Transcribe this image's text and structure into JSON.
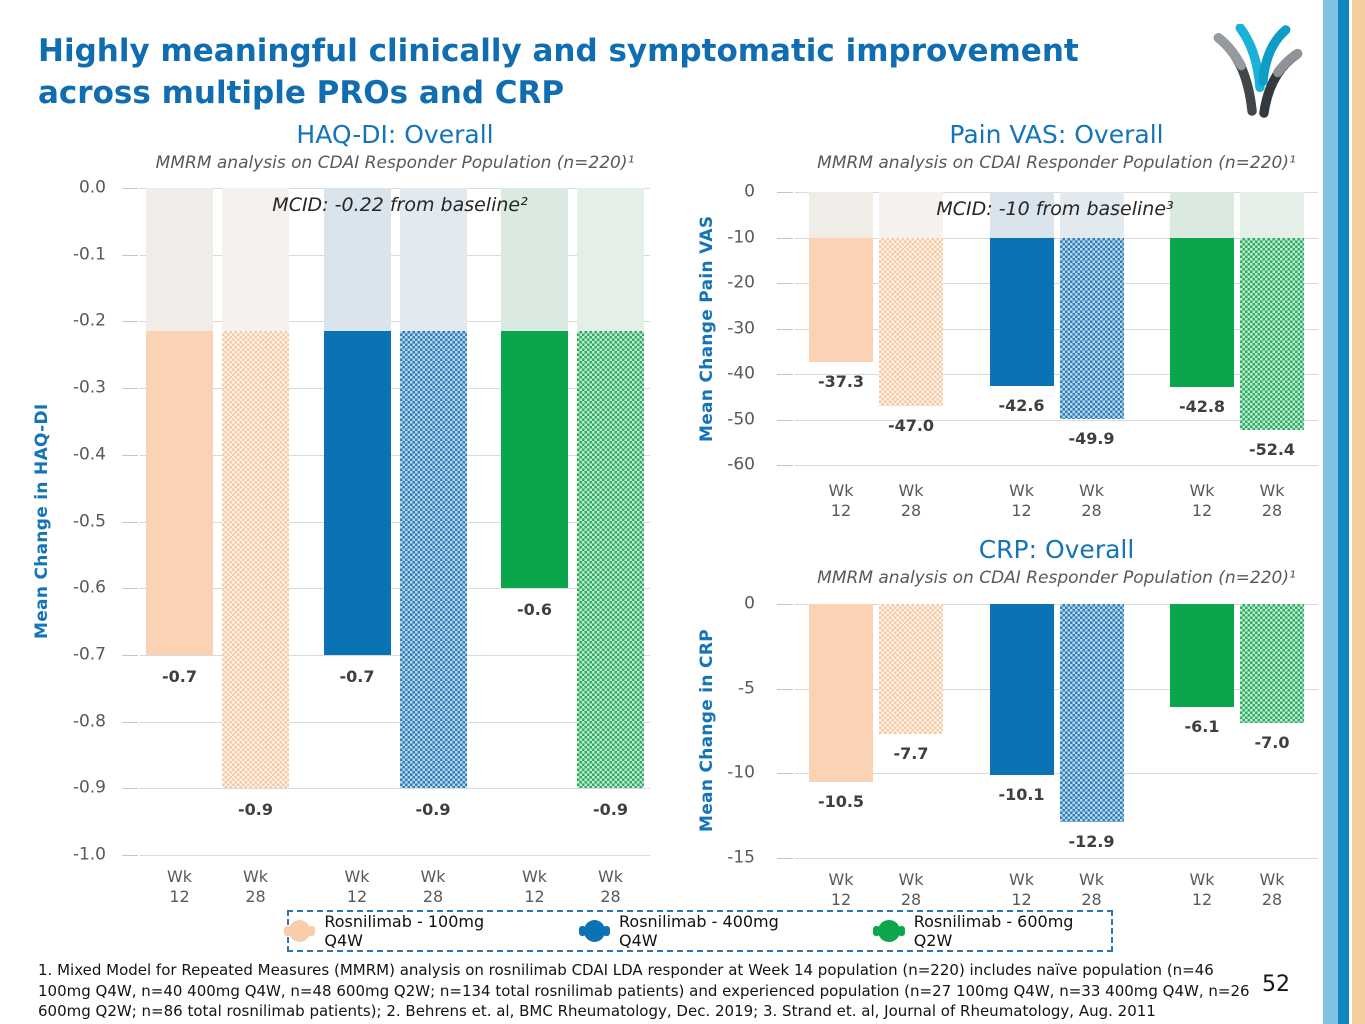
{
  "slide": {
    "title_line1": "Highly meaningful clinically and symptomatic improvement",
    "title_line2": "across multiple PROs and CRP",
    "page_number": "52",
    "footnote": "1. Mixed Model for Repeated Measures (MMRM) analysis on rosnilimab CDAI LDA responder at Week 14 population (n=220) includes naïve population (n=46 100mg Q4W, n=40 400mg Q4W, n=48 600mg Q2W; n=134 total rosnilimab patients) and experienced population (n=27 100mg Q4W, n=33 400mg Q4W, n=26 600mg Q2W; n=86 total rosnilimab patients); 2. Behrens et. al, BMC Rheumatology, Dec. 2019; 3. Strand et. al, Journal of Rheumatology, Aug. 2011"
  },
  "logo": {
    "name": "anaptysbio-logo",
    "colors": {
      "cyan_bright": "#1AB2D8",
      "cyan_deep": "#0F9DC8",
      "gray_light": "#949A9F",
      "gray_dark": "#41464B",
      "dark": "#34393E"
    }
  },
  "accent_stripes": [
    "#7FC2E1",
    "#0E86BF",
    "#F4CD9E"
  ],
  "legend": {
    "border_color": "#2E75B6",
    "items": [
      {
        "label": "Rosnilimab - 100mg Q4W",
        "color": "#F9CDA9"
      },
      {
        "label": "Rosnilimab - 400mg Q4W",
        "color": "#0A73B3"
      },
      {
        "label": "Rosnilimab - 600mg Q2W",
        "color": "#0CA74D"
      }
    ]
  },
  "chart_data": [
    {
      "id": "haq-di",
      "type": "bar",
      "title": "HAQ-DI: Overall",
      "subtitle": "MMRM analysis on CDAI Responder Population (n=220)¹",
      "ylabel": "Mean Change in HAQ-DI",
      "ylim": [
        0,
        -1.0
      ],
      "grid": true,
      "legend_position": "bottom-shared",
      "value_decimals": 1,
      "ytick_values": [
        0,
        -0.1,
        -0.2,
        -0.3,
        -0.4,
        -0.5,
        -0.6,
        -0.7,
        -0.8,
        -0.9,
        -1.0
      ],
      "ytick_labels": [
        "0.0",
        "-0.1",
        "-0.2",
        "-0.3",
        "-0.4",
        "-0.5",
        "-0.6",
        "-0.7",
        "-0.8",
        "-0.9",
        "-1.0"
      ],
      "mcid": {
        "value": -0.215,
        "label": "MCID: -0.22 from baseline²"
      },
      "categories": [
        "Wk 12",
        "Wk 28"
      ],
      "series": [
        {
          "name": "Rosnilimab - 100mg Q4W",
          "values": [
            -0.7,
            -0.9
          ],
          "colors": {
            "solid": "#FBD3B4",
            "checker": [
              "#F7C9A3",
              "#FEF4EA"
            ],
            "mcid": "#F0EDE9",
            "mcid_pattern": "#F4F1EE"
          }
        },
        {
          "name": "Rosnilimab - 400mg Q4W",
          "values": [
            -0.7,
            -0.9
          ],
          "colors": {
            "solid": "#0A73B3",
            "checker": [
              "#2E7FB8",
              "#BAD7EB"
            ],
            "mcid": "#D9E4EC",
            "mcid_pattern": "#E2EAEF"
          }
        },
        {
          "name": "Rosnilimab - 600mg Q2W",
          "values": [
            -0.6,
            -0.9
          ],
          "colors": {
            "solid": "#0BA64C",
            "checker": [
              "#2AAD62",
              "#C5EAD3"
            ],
            "mcid": "#DBEAE0",
            "mcid_pattern": "#E4EFE8"
          }
        }
      ]
    },
    {
      "id": "pain-vas",
      "type": "bar",
      "title": "Pain VAS: Overall",
      "subtitle": "MMRM analysis on CDAI Responder Population (n=220)¹",
      "ylabel": "Mean Change Pain VAS",
      "ylim": [
        0,
        -60
      ],
      "grid": true,
      "legend_position": "bottom-shared",
      "value_decimals": 1,
      "ytick_values": [
        0,
        -10,
        -20,
        -30,
        -40,
        -50,
        -60
      ],
      "ytick_labels": [
        "0",
        "-10",
        "-20",
        "-30",
        "-40",
        "-50",
        "-60"
      ],
      "mcid": {
        "value": -10,
        "label": "MCID: -10 from baseline³"
      },
      "categories": [
        "Wk 12",
        "Wk 28"
      ],
      "series": [
        {
          "name": "Rosnilimab - 100mg Q4W",
          "values": [
            -37.3,
            -47.0
          ],
          "colors": {
            "solid": "#FBD3B4",
            "checker": [
              "#F7C9A3",
              "#FEF4EA"
            ],
            "mcid": "#F0EDE9",
            "mcid_pattern": "#F4F1EE"
          }
        },
        {
          "name": "Rosnilimab - 400mg Q4W",
          "values": [
            -42.6,
            -49.9
          ],
          "colors": {
            "solid": "#0A73B3",
            "checker": [
              "#2E7FB8",
              "#BAD7EB"
            ],
            "mcid": "#D9E4EC",
            "mcid_pattern": "#E2EAEF"
          }
        },
        {
          "name": "Rosnilimab - 600mg Q2W",
          "values": [
            -42.8,
            -52.4
          ],
          "colors": {
            "solid": "#0BA64C",
            "checker": [
              "#2AAD62",
              "#C5EAD3"
            ],
            "mcid": "#DBEAE0",
            "mcid_pattern": "#E4EFE8"
          }
        }
      ]
    },
    {
      "id": "crp",
      "type": "bar",
      "title": "CRP: Overall",
      "subtitle": "MMRM analysis on CDAI Responder Population (n=220)¹",
      "ylabel": "Mean Change in CRP",
      "ylim": [
        0,
        -15
      ],
      "grid": true,
      "legend_position": "bottom-shared",
      "value_decimals": 1,
      "ytick_values": [
        0,
        -5,
        -10,
        -15
      ],
      "ytick_labels": [
        "0",
        "-5",
        "-10",
        "-15"
      ],
      "mcid": null,
      "categories": [
        "Wk 12",
        "Wk 28"
      ],
      "series": [
        {
          "name": "Rosnilimab - 100mg Q4W",
          "values": [
            -10.5,
            -7.7
          ],
          "colors": {
            "solid": "#FBD3B4",
            "checker": [
              "#F7C9A3",
              "#FEF4EA"
            ],
            "mcid": "#F0EDE9",
            "mcid_pattern": "#F4F1EE"
          }
        },
        {
          "name": "Rosnilimab - 400mg Q4W",
          "values": [
            -10.1,
            -12.9
          ],
          "colors": {
            "solid": "#0A73B3",
            "checker": [
              "#2E7FB8",
              "#BAD7EB"
            ],
            "mcid": "#D9E4EC",
            "mcid_pattern": "#E2EAEF"
          }
        },
        {
          "name": "Rosnilimab - 600mg Q2W",
          "values": [
            -6.1,
            -7.0
          ],
          "colors": {
            "solid": "#0BA64C",
            "checker": [
              "#2AAD62",
              "#C5EAD3"
            ],
            "mcid": "#DBEAE0",
            "mcid_pattern": "#E4EFE8"
          }
        }
      ]
    }
  ]
}
